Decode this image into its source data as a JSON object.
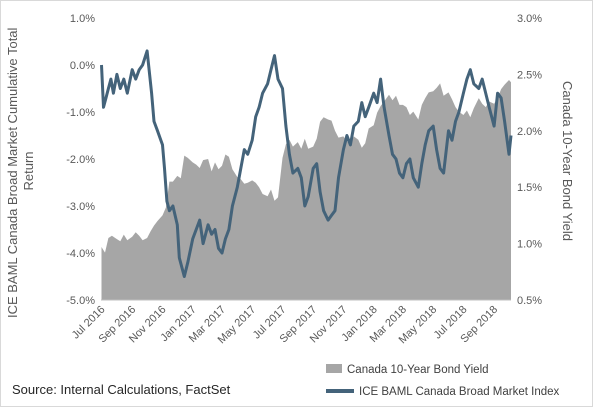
{
  "source_note": "Source: Internal Calculations, FactSet",
  "chart_data": {
    "type": "area+line",
    "x_tick_labels": [
      "Jul 2016",
      "Sep 2016",
      "Nov 2016",
      "Jan 2017",
      "Mar 2017",
      "May 2017",
      "Jul 2017",
      "Sep 2017",
      "Nov 2017",
      "Jan 2018",
      "Mar 2018",
      "May 2018",
      "Jul 2018",
      "Sep 2018"
    ],
    "x_range": [
      "2016-06-30",
      "2018-10-05"
    ],
    "y_left": {
      "label": "ICE BAML Canada Broad Market Cumulative Total Return",
      "range": [
        -5.0,
        1.0
      ],
      "tick_labels": [
        "1.0%",
        "0.0%",
        "-1.0%",
        "-2.0%",
        "-3.0%",
        "-4.0%",
        "-5.0%"
      ]
    },
    "y_right": {
      "label": "Canada 10-Year Bond Yield",
      "range": [
        0.5,
        3.0
      ],
      "tick_labels": [
        "3.0%",
        "2.5%",
        "2.0%",
        "1.5%",
        "1.0%",
        "0.5%"
      ]
    },
    "series": [
      {
        "name": "Canada 10-Year Bond Yield",
        "kind": "area",
        "axis": "right",
        "color": "#a6a6a6",
        "points": [
          [
            "2016-07-01",
            0.97
          ],
          [
            "2016-07-08",
            0.92
          ],
          [
            "2016-07-15",
            1.05
          ],
          [
            "2016-07-22",
            1.07
          ],
          [
            "2016-08-01",
            1.04
          ],
          [
            "2016-08-08",
            1.02
          ],
          [
            "2016-08-15",
            1.08
          ],
          [
            "2016-08-22",
            1.03
          ],
          [
            "2016-09-01",
            1.06
          ],
          [
            "2016-09-08",
            1.1
          ],
          [
            "2016-09-15",
            1.07
          ],
          [
            "2016-09-22",
            1.03
          ],
          [
            "2016-10-01",
            1.05
          ],
          [
            "2016-10-08",
            1.11
          ],
          [
            "2016-10-15",
            1.16
          ],
          [
            "2016-10-22",
            1.2
          ],
          [
            "2016-11-01",
            1.25
          ],
          [
            "2016-11-08",
            1.32
          ],
          [
            "2016-11-15",
            1.55
          ],
          [
            "2016-11-22",
            1.55
          ],
          [
            "2016-12-01",
            1.6
          ],
          [
            "2016-12-08",
            1.58
          ],
          [
            "2016-12-15",
            1.78
          ],
          [
            "2016-12-22",
            1.76
          ],
          [
            "2017-01-01",
            1.72
          ],
          [
            "2017-01-08",
            1.7
          ],
          [
            "2017-01-15",
            1.67
          ],
          [
            "2017-01-22",
            1.74
          ],
          [
            "2017-02-01",
            1.75
          ],
          [
            "2017-02-08",
            1.64
          ],
          [
            "2017-02-15",
            1.72
          ],
          [
            "2017-02-22",
            1.66
          ],
          [
            "2017-03-01",
            1.69
          ],
          [
            "2017-03-08",
            1.79
          ],
          [
            "2017-03-15",
            1.77
          ],
          [
            "2017-03-22",
            1.66
          ],
          [
            "2017-04-01",
            1.59
          ],
          [
            "2017-04-08",
            1.57
          ],
          [
            "2017-04-15",
            1.53
          ],
          [
            "2017-04-22",
            1.54
          ],
          [
            "2017-05-01",
            1.56
          ],
          [
            "2017-05-08",
            1.54
          ],
          [
            "2017-05-15",
            1.5
          ],
          [
            "2017-05-22",
            1.44
          ],
          [
            "2017-06-01",
            1.42
          ],
          [
            "2017-06-08",
            1.48
          ],
          [
            "2017-06-15",
            1.38
          ],
          [
            "2017-06-22",
            1.41
          ],
          [
            "2017-07-01",
            1.76
          ],
          [
            "2017-07-08",
            1.88
          ],
          [
            "2017-07-15",
            1.92
          ],
          [
            "2017-07-22",
            1.86
          ],
          [
            "2017-08-01",
            1.9
          ],
          [
            "2017-08-08",
            1.84
          ],
          [
            "2017-08-15",
            1.93
          ],
          [
            "2017-08-22",
            1.84
          ],
          [
            "2017-09-01",
            1.86
          ],
          [
            "2017-09-08",
            1.93
          ],
          [
            "2017-09-15",
            2.08
          ],
          [
            "2017-09-22",
            2.12
          ],
          [
            "2017-10-01",
            2.1
          ],
          [
            "2017-10-08",
            2.09
          ],
          [
            "2017-10-15",
            2.0
          ],
          [
            "2017-10-22",
            1.94
          ],
          [
            "2017-11-01",
            1.95
          ],
          [
            "2017-11-08",
            1.91
          ],
          [
            "2017-11-15",
            1.89
          ],
          [
            "2017-11-22",
            1.95
          ],
          [
            "2017-12-01",
            1.92
          ],
          [
            "2017-12-08",
            1.85
          ],
          [
            "2017-12-15",
            1.89
          ],
          [
            "2017-12-22",
            2.02
          ],
          [
            "2018-01-01",
            2.05
          ],
          [
            "2018-01-08",
            2.16
          ],
          [
            "2018-01-15",
            2.22
          ],
          [
            "2018-01-22",
            2.26
          ],
          [
            "2018-02-01",
            2.32
          ],
          [
            "2018-02-08",
            2.27
          ],
          [
            "2018-02-15",
            2.31
          ],
          [
            "2018-02-22",
            2.23
          ],
          [
            "2018-03-01",
            2.23
          ],
          [
            "2018-03-08",
            2.21
          ],
          [
            "2018-03-15",
            2.14
          ],
          [
            "2018-03-22",
            2.17
          ],
          [
            "2018-04-01",
            2.1
          ],
          [
            "2018-04-08",
            2.23
          ],
          [
            "2018-04-15",
            2.29
          ],
          [
            "2018-04-22",
            2.34
          ],
          [
            "2018-05-01",
            2.35
          ],
          [
            "2018-05-08",
            2.38
          ],
          [
            "2018-05-15",
            2.42
          ],
          [
            "2018-05-22",
            2.31
          ],
          [
            "2018-06-01",
            2.34
          ],
          [
            "2018-06-08",
            2.28
          ],
          [
            "2018-06-15",
            2.21
          ],
          [
            "2018-06-22",
            2.17
          ],
          [
            "2018-07-01",
            2.14
          ],
          [
            "2018-07-08",
            2.18
          ],
          [
            "2018-07-15",
            2.12
          ],
          [
            "2018-07-22",
            2.2
          ],
          [
            "2018-08-01",
            2.29
          ],
          [
            "2018-08-08",
            2.24
          ],
          [
            "2018-08-15",
            2.21
          ],
          [
            "2018-08-22",
            2.26
          ],
          [
            "2018-09-01",
            2.24
          ],
          [
            "2018-09-08",
            2.29
          ],
          [
            "2018-09-15",
            2.37
          ],
          [
            "2018-09-22",
            2.41
          ],
          [
            "2018-10-01",
            2.45
          ],
          [
            "2018-10-05",
            2.43
          ]
        ]
      },
      {
        "name": "ICE BAML Canada Broad Market Index",
        "kind": "line",
        "axis": "left",
        "color": "#44637a",
        "points": [
          [
            "2016-07-01",
            0.0
          ],
          [
            "2016-07-05",
            -0.9
          ],
          [
            "2016-07-10",
            -0.7
          ],
          [
            "2016-07-15",
            -0.5
          ],
          [
            "2016-07-20",
            -0.3
          ],
          [
            "2016-07-25",
            -0.6
          ],
          [
            "2016-08-01",
            -0.2
          ],
          [
            "2016-08-08",
            -0.5
          ],
          [
            "2016-08-15",
            -0.3
          ],
          [
            "2016-08-22",
            -0.6
          ],
          [
            "2016-09-01",
            -0.1
          ],
          [
            "2016-09-08",
            -0.3
          ],
          [
            "2016-09-15",
            -0.1
          ],
          [
            "2016-09-22",
            0.0
          ],
          [
            "2016-10-01",
            0.3
          ],
          [
            "2016-10-05",
            -0.1
          ],
          [
            "2016-10-10",
            -0.6
          ],
          [
            "2016-10-15",
            -1.2
          ],
          [
            "2016-10-22",
            -1.4
          ],
          [
            "2016-11-01",
            -1.7
          ],
          [
            "2016-11-05",
            -2.2
          ],
          [
            "2016-11-10",
            -2.9
          ],
          [
            "2016-11-15",
            -3.1
          ],
          [
            "2016-11-22",
            -3.0
          ],
          [
            "2016-12-01",
            -3.4
          ],
          [
            "2016-12-05",
            -4.1
          ],
          [
            "2016-12-10",
            -4.3
          ],
          [
            "2016-12-15",
            -4.5
          ],
          [
            "2016-12-22",
            -4.2
          ],
          [
            "2017-01-01",
            -3.7
          ],
          [
            "2017-01-08",
            -3.5
          ],
          [
            "2017-01-15",
            -3.3
          ],
          [
            "2017-01-22",
            -3.8
          ],
          [
            "2017-02-01",
            -3.4
          ],
          [
            "2017-02-08",
            -3.6
          ],
          [
            "2017-02-15",
            -3.5
          ],
          [
            "2017-02-22",
            -3.9
          ],
          [
            "2017-03-01",
            -4.0
          ],
          [
            "2017-03-08",
            -3.7
          ],
          [
            "2017-03-15",
            -3.5
          ],
          [
            "2017-03-22",
            -3.0
          ],
          [
            "2017-04-01",
            -2.6
          ],
          [
            "2017-04-08",
            -2.2
          ],
          [
            "2017-04-15",
            -1.8
          ],
          [
            "2017-04-22",
            -1.9
          ],
          [
            "2017-05-01",
            -1.6
          ],
          [
            "2017-05-08",
            -1.1
          ],
          [
            "2017-05-15",
            -0.9
          ],
          [
            "2017-05-22",
            -0.6
          ],
          [
            "2017-06-01",
            -0.4
          ],
          [
            "2017-06-08",
            -0.1
          ],
          [
            "2017-06-15",
            0.2
          ],
          [
            "2017-06-22",
            -0.3
          ],
          [
            "2017-07-01",
            -0.5
          ],
          [
            "2017-07-08",
            -1.3
          ],
          [
            "2017-07-15",
            -1.9
          ],
          [
            "2017-07-22",
            -2.3
          ],
          [
            "2017-08-01",
            -2.2
          ],
          [
            "2017-08-08",
            -2.4
          ],
          [
            "2017-08-15",
            -3.0
          ],
          [
            "2017-08-22",
            -2.8
          ],
          [
            "2017-09-01",
            -2.2
          ],
          [
            "2017-09-08",
            -2.1
          ],
          [
            "2017-09-15",
            -2.7
          ],
          [
            "2017-09-22",
            -3.1
          ],
          [
            "2017-10-01",
            -3.3
          ],
          [
            "2017-10-08",
            -3.2
          ],
          [
            "2017-10-15",
            -3.1
          ],
          [
            "2017-10-22",
            -2.4
          ],
          [
            "2017-11-01",
            -1.8
          ],
          [
            "2017-11-08",
            -1.5
          ],
          [
            "2017-11-15",
            -1.7
          ],
          [
            "2017-11-22",
            -1.3
          ],
          [
            "2017-12-01",
            -1.2
          ],
          [
            "2017-12-08",
            -0.8
          ],
          [
            "2017-12-15",
            -1.1
          ],
          [
            "2017-12-22",
            -0.9
          ],
          [
            "2018-01-01",
            -0.6
          ],
          [
            "2018-01-08",
            -0.8
          ],
          [
            "2018-01-15",
            -0.3
          ],
          [
            "2018-01-22",
            -0.9
          ],
          [
            "2018-02-01",
            -1.5
          ],
          [
            "2018-02-08",
            -1.9
          ],
          [
            "2018-02-15",
            -2.0
          ],
          [
            "2018-02-22",
            -2.3
          ],
          [
            "2018-03-01",
            -2.4
          ],
          [
            "2018-03-08",
            -2.1
          ],
          [
            "2018-03-15",
            -2.0
          ],
          [
            "2018-03-22",
            -2.4
          ],
          [
            "2018-04-01",
            -2.6
          ],
          [
            "2018-04-08",
            -2.1
          ],
          [
            "2018-04-15",
            -1.7
          ],
          [
            "2018-04-22",
            -1.4
          ],
          [
            "2018-05-01",
            -1.3
          ],
          [
            "2018-05-08",
            -1.8
          ],
          [
            "2018-05-15",
            -2.2
          ],
          [
            "2018-05-22",
            -2.3
          ],
          [
            "2018-06-01",
            -1.4
          ],
          [
            "2018-06-08",
            -1.6
          ],
          [
            "2018-06-15",
            -1.2
          ],
          [
            "2018-06-22",
            -1.0
          ],
          [
            "2018-07-01",
            -0.6
          ],
          [
            "2018-07-08",
            -0.3
          ],
          [
            "2018-07-15",
            -0.1
          ],
          [
            "2018-07-22",
            -0.4
          ],
          [
            "2018-08-01",
            -0.5
          ],
          [
            "2018-08-08",
            -0.3
          ],
          [
            "2018-08-15",
            -0.6
          ],
          [
            "2018-08-22",
            -0.9
          ],
          [
            "2018-09-01",
            -1.3
          ],
          [
            "2018-09-08",
            -0.6
          ],
          [
            "2018-09-15",
            -0.7
          ],
          [
            "2018-09-22",
            -1.2
          ],
          [
            "2018-10-01",
            -1.9
          ],
          [
            "2018-10-05",
            -1.5
          ]
        ]
      }
    ],
    "legend_position": "bottom-right",
    "grid": false
  }
}
